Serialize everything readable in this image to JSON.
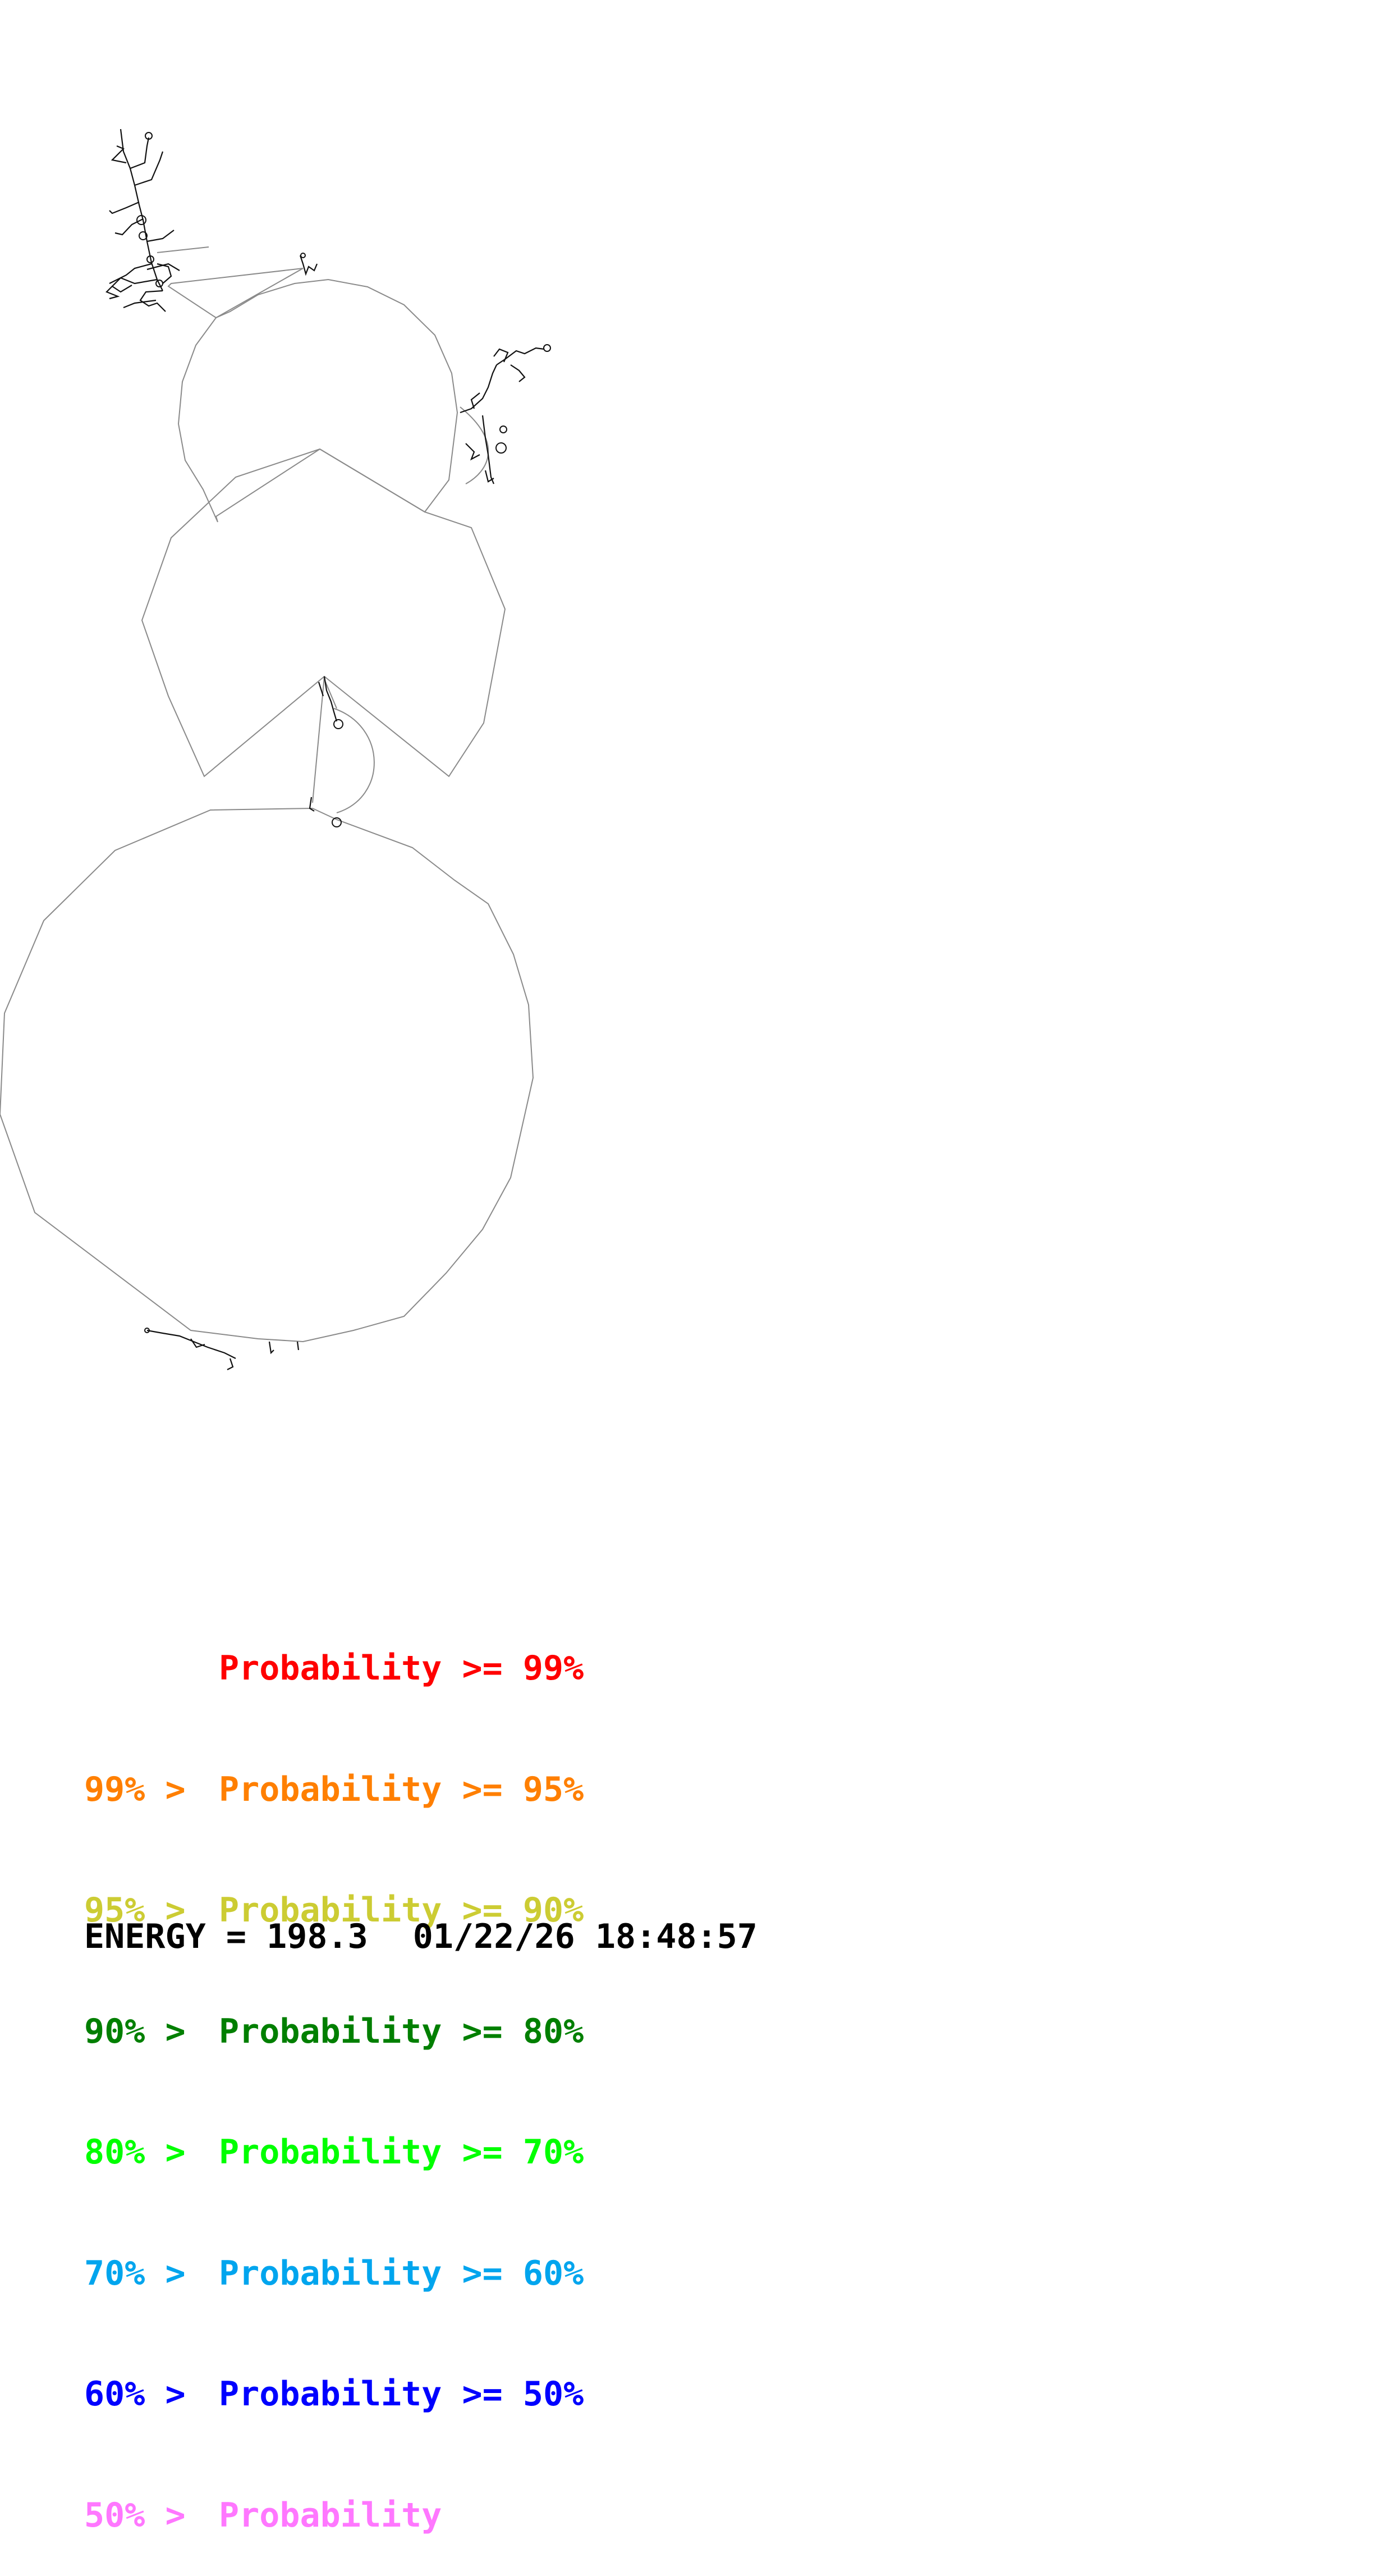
{
  "legend": [
    {
      "lower": "",
      "label": "Probability >= 99%",
      "color": "#ff0000"
    },
    {
      "lower": "99% >",
      "label": "Probability >= 95%",
      "color": "#ff7f00"
    },
    {
      "lower": "95% >",
      "label": "Probability >= 90%",
      "color": "#cccc33"
    },
    {
      "lower": "90% >",
      "label": "Probability >= 80%",
      "color": "#007f00"
    },
    {
      "lower": "80% >",
      "label": "Probability >= 70%",
      "color": "#00ff00"
    },
    {
      "lower": "70% >",
      "label": "Probability >= 60%",
      "color": "#00a5ee"
    },
    {
      "lower": "60% >",
      "label": "Probability >= 50%",
      "color": "#0000ff"
    },
    {
      "lower": "50% >",
      "label": "Probability",
      "color": "#ff77ff"
    }
  ],
  "footer": {
    "energy": "ENERGY = 198.3",
    "timestamp": "01/22/26 18:48:57"
  }
}
